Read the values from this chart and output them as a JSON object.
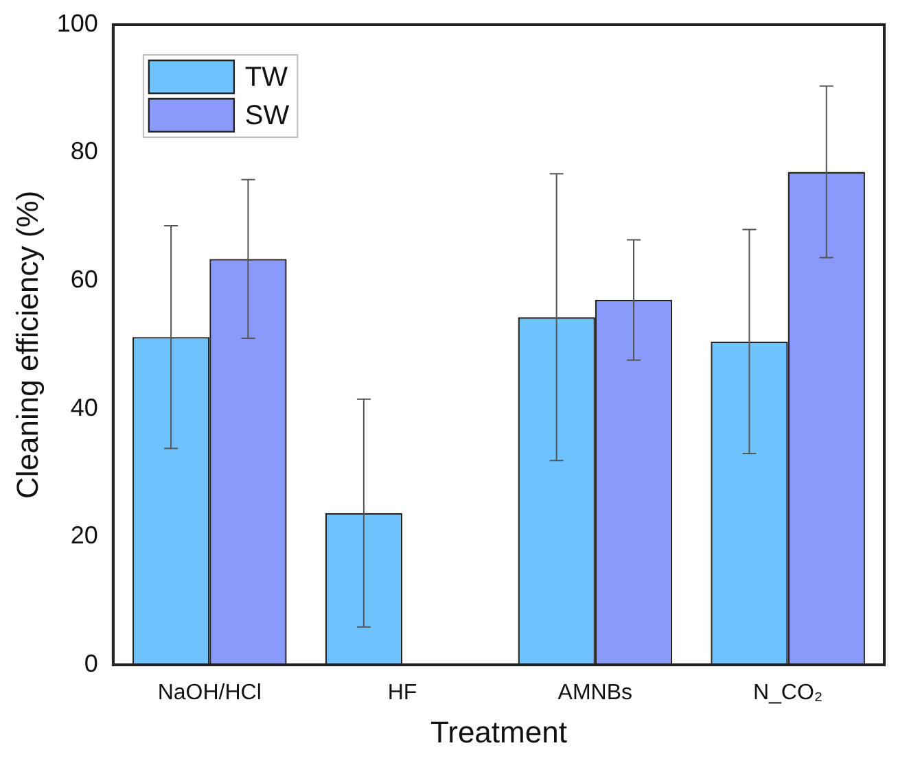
{
  "chart_data": {
    "type": "bar",
    "xlabel": "Treatment",
    "ylabel": "Cleaning efficiency (%)",
    "categories": [
      "NaOH/HCl",
      "HF",
      "AMNBs",
      "N_CO₂"
    ],
    "series": [
      {
        "name": "TW",
        "color": "#6ec2fd",
        "values": [
          51.2,
          23.7,
          54.3,
          50.5
        ],
        "errors": [
          17.4,
          17.8,
          22.4,
          17.5
        ]
      },
      {
        "name": "SW",
        "color": "#8a9afa",
        "values": [
          63.4,
          null,
          57.0,
          77.0
        ],
        "errors": [
          12.4,
          null,
          9.4,
          13.4
        ]
      }
    ],
    "ylim": [
      0,
      100
    ],
    "yticks": [
      0,
      20,
      40,
      60,
      80,
      100
    ],
    "grid": false,
    "legend": "top left"
  }
}
